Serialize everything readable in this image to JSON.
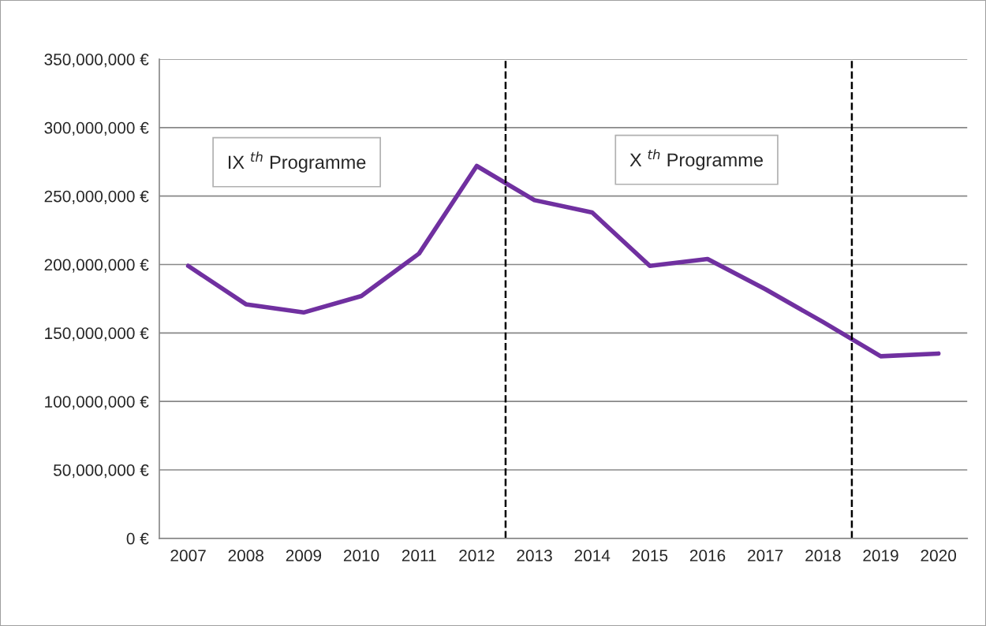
{
  "chart_data": {
    "type": "line",
    "x": [
      2007,
      2008,
      2009,
      2010,
      2011,
      2012,
      2013,
      2014,
      2015,
      2016,
      2017,
      2018,
      2019,
      2020
    ],
    "series": [
      {
        "color": "#7030a0",
        "values": [
          199000000,
          171000000,
          165000000,
          177000000,
          208000000,
          272000000,
          247000000,
          238000000,
          199000000,
          204000000,
          182000000,
          158000000,
          133000000,
          135000000
        ]
      }
    ],
    "xlim": [
      2006.5,
      2020.5
    ],
    "xticks": [
      2007,
      2008,
      2009,
      2010,
      2011,
      2012,
      2013,
      2014,
      2015,
      2016,
      2017,
      2018,
      2019,
      2020
    ],
    "ylim": [
      0,
      350000000
    ],
    "yticks": [
      {
        "value": 0,
        "label": "0 €"
      },
      {
        "value": 50000000,
        "label": "50,000,000 €"
      },
      {
        "value": 100000000,
        "label": "100,000,000 €"
      },
      {
        "value": 150000000,
        "label": "150,000,000 €"
      },
      {
        "value": 200000000,
        "label": "200,000,000 €"
      },
      {
        "value": 250000000,
        "label": "250,000,000 €"
      },
      {
        "value": 300000000,
        "label": "300,000,000 €"
      },
      {
        "value": 350000000,
        "label": "350,000,000 €"
      }
    ],
    "ref_lines": [
      {
        "axis": "x",
        "value": 2012.5,
        "color": "#000000",
        "line_style": "dashed"
      },
      {
        "axis": "x",
        "value": 2018.5,
        "color": "#000000",
        "line_style": "dashed"
      }
    ],
    "annotations": [
      "IX $^{th}$ Programme",
      "X $^{th}$ Programme"
    ],
    "grid": "y",
    "legend": false,
    "marker": "none",
    "line_style": "solid"
  }
}
